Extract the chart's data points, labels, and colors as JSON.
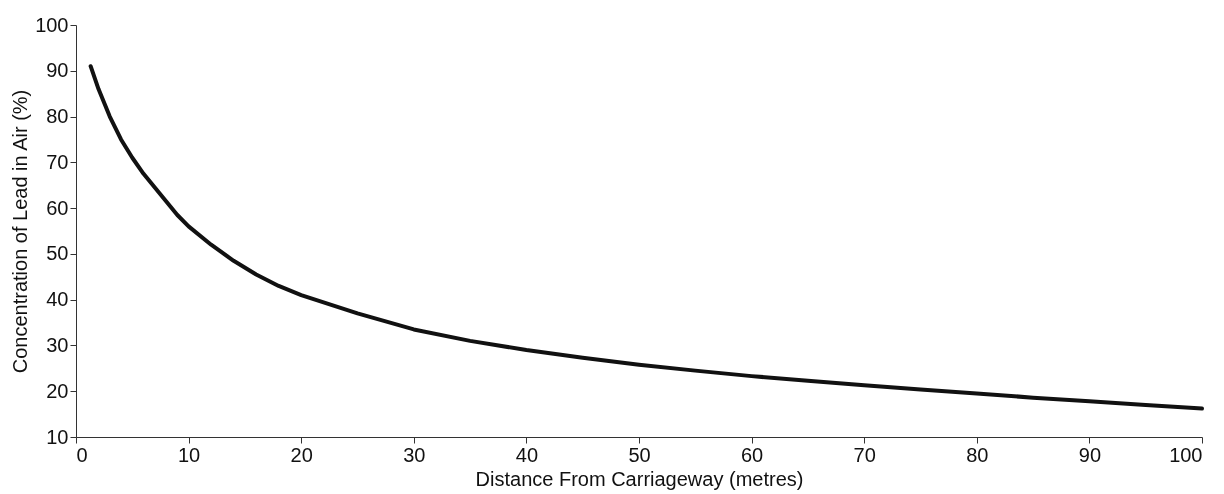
{
  "chart_data": {
    "type": "line",
    "xlabel": "Distance From Carriageway (metres)",
    "ylabel": "Concentration of Lead in Air (%)",
    "x": [
      1.3,
      2,
      3,
      4,
      5,
      6,
      7,
      8,
      9,
      10,
      12,
      14,
      16,
      18,
      20,
      25,
      30,
      35,
      40,
      45,
      50,
      55,
      60,
      65,
      70,
      75,
      80,
      85,
      90,
      95,
      100
    ],
    "series": [
      {
        "color": "#111111",
        "values": [
          91,
          86,
          80,
          75,
          71,
          67.5,
          64.5,
          61.5,
          58.5,
          56,
          52,
          48.5,
          45.5,
          43,
          41,
          37,
          33.5,
          31,
          29,
          27.3,
          25.8,
          24.5,
          23.3,
          22.3,
          21.3,
          20.4,
          19.5,
          18.6,
          17.8,
          17,
          16.2
        ]
      }
    ],
    "xlim": [
      0,
      100
    ],
    "xticks": [
      0,
      10,
      20,
      30,
      40,
      50,
      60,
      70,
      80,
      90,
      100
    ],
    "ylim": [
      10,
      100
    ],
    "yticks": [
      10,
      20,
      30,
      40,
      50,
      60,
      70,
      80,
      90,
      100
    ],
    "grid": false,
    "marker": "none",
    "line_style": "solid"
  }
}
